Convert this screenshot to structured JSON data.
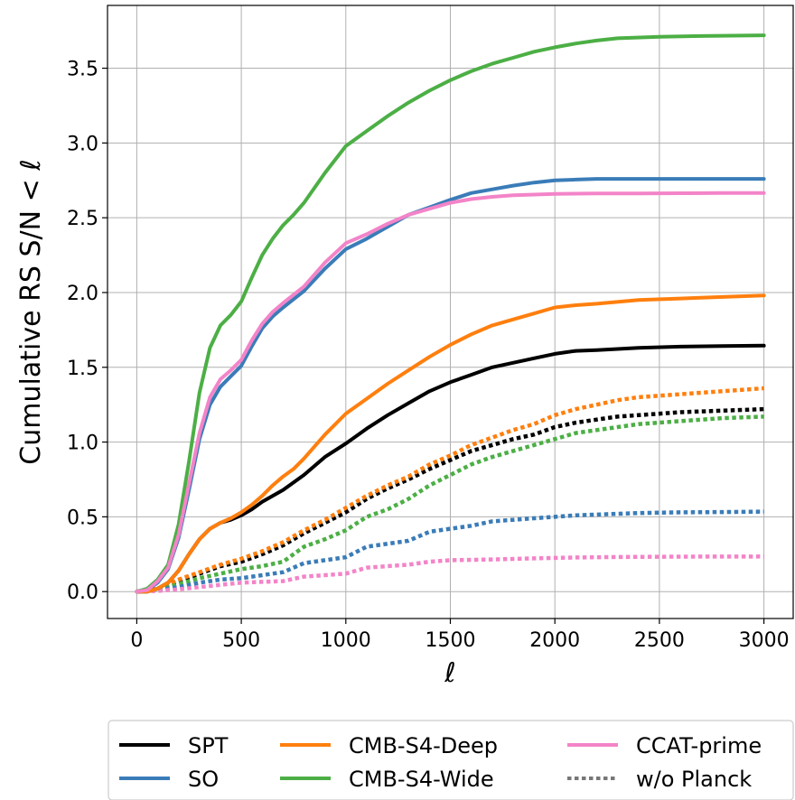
{
  "chart_data": {
    "type": "line",
    "xlabel": "ℓ",
    "ylabel": "Cumulative RS S/N  < ℓ",
    "xlim": [
      -140,
      3140
    ],
    "ylim": [
      -0.18,
      3.92
    ],
    "x_ticks": [
      0,
      500,
      1000,
      1500,
      2000,
      2500,
      3000
    ],
    "y_ticks": [
      0.0,
      0.5,
      1.0,
      1.5,
      2.0,
      2.5,
      3.0,
      3.5
    ],
    "x_tick_labels": [
      "0",
      "500",
      "1000",
      "1500",
      "2000",
      "2500",
      "3000"
    ],
    "y_tick_labels": [
      "0.0",
      "0.5",
      "1.0",
      "1.5",
      "2.0",
      "2.5",
      "3.0",
      "3.5"
    ],
    "grid": true,
    "legend_position": "below",
    "legend": [
      {
        "label": "SPT",
        "color": "#000000",
        "style": "solid"
      },
      {
        "label": "SO",
        "color": "#3a7cb8",
        "style": "solid"
      },
      {
        "label": "CMB-S4-Deep",
        "color": "#ff7f0e",
        "style": "solid"
      },
      {
        "label": "CMB-S4-Wide",
        "color": "#4caf45",
        "style": "solid"
      },
      {
        "label": "CCAT-prime",
        "color": "#f384c8",
        "style": "solid"
      },
      {
        "label": "w/o Planck",
        "color": "#777777",
        "style": "dotted"
      }
    ],
    "series": [
      {
        "name": "SPT",
        "color": "#000000",
        "style": "solid",
        "x": [
          0,
          50,
          100,
          150,
          200,
          250,
          300,
          350,
          400,
          450,
          500,
          550,
          600,
          700,
          800,
          900,
          1000,
          1100,
          1200,
          1300,
          1400,
          1500,
          1600,
          1700,
          1800,
          1900,
          2000,
          2100,
          2200,
          2400,
          2600,
          2800,
          3000
        ],
        "y": [
          0,
          0,
          0.02,
          0.06,
          0.14,
          0.25,
          0.35,
          0.42,
          0.46,
          0.48,
          0.51,
          0.55,
          0.6,
          0.68,
          0.78,
          0.9,
          0.99,
          1.09,
          1.18,
          1.26,
          1.34,
          1.4,
          1.45,
          1.5,
          1.53,
          1.56,
          1.59,
          1.61,
          1.615,
          1.63,
          1.638,
          1.642,
          1.645
        ]
      },
      {
        "name": "SO",
        "color": "#3a7cb8",
        "style": "solid",
        "x": [
          0,
          50,
          100,
          150,
          200,
          250,
          300,
          350,
          400,
          450,
          500,
          550,
          600,
          650,
          700,
          800,
          900,
          1000,
          1100,
          1200,
          1300,
          1400,
          1500,
          1600,
          1700,
          1800,
          1900,
          2000,
          2100,
          2200,
          2400,
          2600,
          2800,
          3000
        ],
        "y": [
          0,
          0.01,
          0.06,
          0.15,
          0.36,
          0.68,
          1.02,
          1.25,
          1.37,
          1.44,
          1.51,
          1.64,
          1.76,
          1.84,
          1.9,
          2.01,
          2.16,
          2.29,
          2.36,
          2.44,
          2.52,
          2.57,
          2.62,
          2.665,
          2.69,
          2.715,
          2.735,
          2.75,
          2.755,
          2.76,
          2.76,
          2.76,
          2.76,
          2.76
        ]
      },
      {
        "name": "CMB-S4-Deep",
        "color": "#ff7f0e",
        "style": "solid",
        "x": [
          0,
          50,
          100,
          150,
          200,
          250,
          300,
          350,
          400,
          450,
          500,
          550,
          600,
          650,
          700,
          750,
          800,
          900,
          1000,
          1100,
          1200,
          1300,
          1400,
          1500,
          1600,
          1700,
          1800,
          1900,
          2000,
          2100,
          2200,
          2400,
          2600,
          2800,
          3000
        ],
        "y": [
          0,
          0,
          0.02,
          0.06,
          0.14,
          0.25,
          0.35,
          0.42,
          0.46,
          0.49,
          0.53,
          0.58,
          0.64,
          0.71,
          0.77,
          0.82,
          0.89,
          1.05,
          1.19,
          1.29,
          1.39,
          1.48,
          1.57,
          1.65,
          1.72,
          1.78,
          1.82,
          1.86,
          1.9,
          1.915,
          1.925,
          1.95,
          1.96,
          1.97,
          1.98
        ]
      },
      {
        "name": "CMB-S4-Wide",
        "color": "#4caf45",
        "style": "solid",
        "x": [
          0,
          50,
          100,
          150,
          200,
          250,
          300,
          350,
          400,
          450,
          500,
          550,
          600,
          650,
          700,
          750,
          800,
          900,
          1000,
          1100,
          1200,
          1300,
          1400,
          1500,
          1600,
          1700,
          1800,
          1900,
          2000,
          2100,
          2200,
          2300,
          2500,
          2700,
          3000
        ],
        "y": [
          0,
          0.02,
          0.08,
          0.18,
          0.45,
          0.87,
          1.33,
          1.63,
          1.78,
          1.85,
          1.94,
          2.1,
          2.25,
          2.36,
          2.45,
          2.52,
          2.6,
          2.8,
          2.98,
          3.08,
          3.18,
          3.27,
          3.35,
          3.42,
          3.48,
          3.53,
          3.57,
          3.61,
          3.64,
          3.665,
          3.685,
          3.7,
          3.71,
          3.715,
          3.72
        ]
      },
      {
        "name": "CCAT-prime",
        "color": "#f384c8",
        "style": "solid",
        "x": [
          0,
          50,
          100,
          150,
          200,
          250,
          300,
          350,
          400,
          450,
          500,
          550,
          600,
          650,
          700,
          800,
          900,
          1000,
          1100,
          1200,
          1300,
          1400,
          1500,
          1600,
          1700,
          1800,
          1900,
          2000,
          2200,
          2400,
          2600,
          2800,
          3000
        ],
        "y": [
          0,
          0.01,
          0.07,
          0.16,
          0.38,
          0.72,
          1.06,
          1.3,
          1.42,
          1.48,
          1.55,
          1.68,
          1.79,
          1.87,
          1.93,
          2.04,
          2.2,
          2.33,
          2.39,
          2.46,
          2.52,
          2.56,
          2.6,
          2.625,
          2.64,
          2.65,
          2.655,
          2.66,
          2.662,
          2.663,
          2.664,
          2.665,
          2.665
        ]
      },
      {
        "name": "w/o Planck",
        "color": "#000000",
        "style": "dotted",
        "x": [
          0,
          100,
          200,
          300,
          400,
          500,
          600,
          700,
          800,
          900,
          1000,
          1100,
          1200,
          1300,
          1400,
          1500,
          1600,
          1700,
          1800,
          1900,
          2000,
          2100,
          2200,
          2300,
          2400,
          2600,
          2800,
          3000
        ],
        "y": [
          0,
          0.02,
          0.07,
          0.12,
          0.17,
          0.2,
          0.25,
          0.31,
          0.39,
          0.46,
          0.53,
          0.62,
          0.69,
          0.75,
          0.82,
          0.88,
          0.94,
          0.98,
          1.02,
          1.05,
          1.1,
          1.13,
          1.15,
          1.17,
          1.18,
          1.2,
          1.21,
          1.22
        ]
      },
      {
        "name": "w/o Planck",
        "color": "#ff7f0e",
        "style": "dotted",
        "x": [
          0,
          100,
          200,
          300,
          400,
          500,
          600,
          700,
          800,
          900,
          1000,
          1100,
          1200,
          1300,
          1400,
          1500,
          1600,
          1700,
          1800,
          1900,
          2000,
          2100,
          2200,
          2300,
          2400,
          2600,
          2800,
          3000
        ],
        "y": [
          0,
          0.02,
          0.08,
          0.13,
          0.18,
          0.22,
          0.27,
          0.33,
          0.41,
          0.48,
          0.56,
          0.64,
          0.71,
          0.77,
          0.85,
          0.91,
          0.98,
          1.03,
          1.08,
          1.12,
          1.18,
          1.22,
          1.25,
          1.28,
          1.3,
          1.32,
          1.34,
          1.36
        ]
      },
      {
        "name": "w/o Planck",
        "color": "#4caf45",
        "style": "dotted",
        "x": [
          0,
          100,
          200,
          300,
          400,
          500,
          600,
          700,
          800,
          900,
          1000,
          1100,
          1200,
          1300,
          1400,
          1500,
          1600,
          1700,
          1800,
          1900,
          2000,
          2100,
          2200,
          2300,
          2400,
          2600,
          2800,
          3000
        ],
        "y": [
          0,
          0.01,
          0.05,
          0.09,
          0.12,
          0.15,
          0.17,
          0.2,
          0.3,
          0.35,
          0.41,
          0.5,
          0.55,
          0.62,
          0.71,
          0.78,
          0.85,
          0.9,
          0.94,
          0.98,
          1.02,
          1.06,
          1.08,
          1.1,
          1.12,
          1.14,
          1.16,
          1.17
        ]
      },
      {
        "name": "w/o Planck",
        "color": "#3a7cb8",
        "style": "dotted",
        "x": [
          0,
          100,
          200,
          300,
          400,
          500,
          600,
          700,
          800,
          900,
          1000,
          1100,
          1200,
          1300,
          1400,
          1500,
          1600,
          1700,
          1800,
          1900,
          2000,
          2100,
          2200,
          2400,
          2600,
          2800,
          3000
        ],
        "y": [
          0,
          0.01,
          0.03,
          0.06,
          0.08,
          0.09,
          0.11,
          0.13,
          0.19,
          0.21,
          0.23,
          0.3,
          0.32,
          0.34,
          0.4,
          0.42,
          0.44,
          0.47,
          0.48,
          0.49,
          0.5,
          0.51,
          0.515,
          0.525,
          0.53,
          0.532,
          0.535
        ]
      },
      {
        "name": "w/o Planck",
        "color": "#f384c8",
        "style": "dotted",
        "x": [
          0,
          100,
          200,
          300,
          400,
          500,
          600,
          700,
          800,
          900,
          1000,
          1100,
          1200,
          1300,
          1400,
          1500,
          1700,
          1900,
          2100,
          2300,
          2500,
          2700,
          3000
        ],
        "y": [
          0,
          0.005,
          0.015,
          0.03,
          0.045,
          0.06,
          0.065,
          0.07,
          0.1,
          0.11,
          0.12,
          0.16,
          0.17,
          0.18,
          0.2,
          0.21,
          0.215,
          0.222,
          0.228,
          0.231,
          0.233,
          0.234,
          0.235
        ]
      }
    ]
  }
}
